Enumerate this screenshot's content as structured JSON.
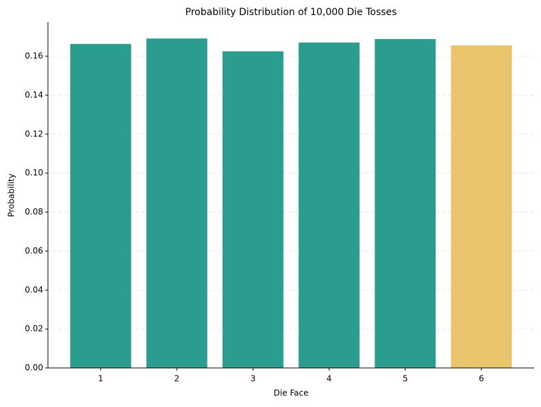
{
  "chart_data": {
    "type": "bar",
    "title": "Probability Distribution of 10,000 Die Tosses",
    "x_label": "Die Face",
    "y_label": "Probability",
    "categories": [
      "1",
      "2",
      "3",
      "4",
      "5",
      "6"
    ],
    "values": [
      0.1663,
      0.1691,
      0.1625,
      0.167,
      0.1688,
      0.1656
    ],
    "colors": [
      "#2a9d8f",
      "#2a9d8f",
      "#2a9d8f",
      "#2a9d8f",
      "#2a9d8f",
      "#e9c46a"
    ],
    "ylim": [
      0,
      0.1776
    ],
    "yticks": [
      {
        "value": 0,
        "label": "0.00"
      },
      {
        "value": 0.02,
        "label": "0.02"
      },
      {
        "value": 0.04,
        "label": "0.04"
      },
      {
        "value": 0.06,
        "label": "0.06"
      },
      {
        "value": 0.08,
        "label": "0.08"
      },
      {
        "value": 0.1,
        "label": "0.10"
      },
      {
        "value": 0.12,
        "label": "0.12"
      },
      {
        "value": 0.14,
        "label": "0.14"
      },
      {
        "value": 0.16,
        "label": "0.16"
      }
    ],
    "grid": true
  }
}
